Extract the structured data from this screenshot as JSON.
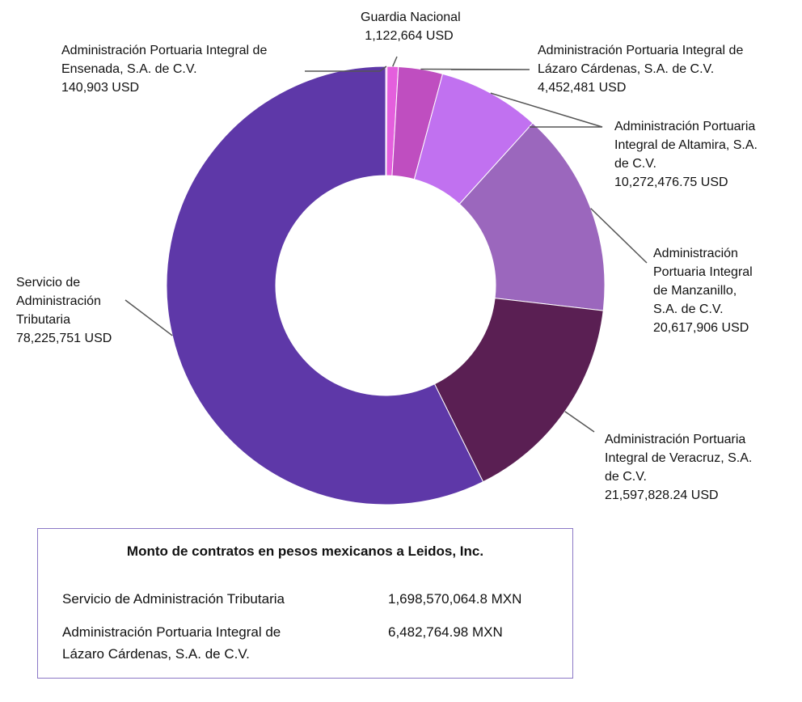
{
  "chart_data": {
    "type": "pie",
    "donut": true,
    "slices": [
      {
        "label": "Administración Portuaria Integral de Ensenada, S.A. de C.V.",
        "value": 140903,
        "value_text": "140,903 USD",
        "color": "#f4a6f0"
      },
      {
        "label": "Guardia Nacional",
        "value": 1122664,
        "value_text": "1,122,664 USD",
        "color": "#e45fdd"
      },
      {
        "label": "Administración Portuaria Integral de Lázaro Cárdenas, S.A. de C.V.",
        "value": 4452481,
        "value_text": "4,452,481 USD",
        "color": "#bf4ec0"
      },
      {
        "label": "Administración Portuaria Integral de Altamira, S.A. de C.V.",
        "value": 10272476.75,
        "value_text": "10,272,476.75 USD",
        "color": "#c171f0"
      },
      {
        "label": "Administración Portuaria Integral de Manzanillo, S.A. de C.V.",
        "value": 20617906,
        "value_text": "20,617,906 USD",
        "color": "#9b67bd"
      },
      {
        "label": "Administración Portuaria Integral de Veracruz, S.A. de C.V.",
        "value": 21597828.24,
        "value_text": "21,597,828.24 USD",
        "color": "#5a1f53"
      },
      {
        "label": "Servicio de Administración Tributaria",
        "value": 78225751,
        "value_text": "78,225,751 USD",
        "color": "#5e38a8"
      }
    ]
  },
  "labels": {
    "guardia": {
      "name": "Guardia Nacional",
      "value": "1,122,664 USD"
    },
    "ensenada": {
      "name_lines": [
        "Administración Portuaria Integral de",
        "Ensenada, S.A. de C.V."
      ],
      "value": "140,903 USD"
    },
    "lazaro": {
      "name_lines": [
        "Administración Portuaria Integral de",
        "Lázaro Cárdenas, S.A. de C.V."
      ],
      "value": "4,452,481 USD"
    },
    "altamira": {
      "name_lines": [
        "Administración Portuaria",
        "Integral de Altamira, S.A.",
        "de C.V."
      ],
      "value": "10,272,476.75 USD"
    },
    "manzanillo": {
      "name_lines": [
        "Administración",
        "Portuaria Integral",
        "de Manzanillo,",
        "S.A. de C.V."
      ],
      "value": "20,617,906 USD"
    },
    "sat": {
      "name_lines": [
        "Servicio de",
        "Administración",
        "Tributaria"
      ],
      "value": "78,225,751 USD"
    },
    "veracruz": {
      "name_lines": [
        "Administración Portuaria",
        "Integral de Veracruz, S.A.",
        "de C.V."
      ],
      "value": "21,597,828.24 USD"
    }
  },
  "table": {
    "title": "Monto de contratos en pesos mexicanos a Leidos, Inc.",
    "rows": [
      {
        "entity_lines": [
          "Servicio de Administración Tributaria"
        ],
        "amount": "1,698,570,064.8 MXN"
      },
      {
        "entity_lines": [
          "Administración Portuaria Integral de",
          "Lázaro Cárdenas, S.A. de C.V."
        ],
        "amount": "6,482,764.98 MXN"
      }
    ]
  }
}
